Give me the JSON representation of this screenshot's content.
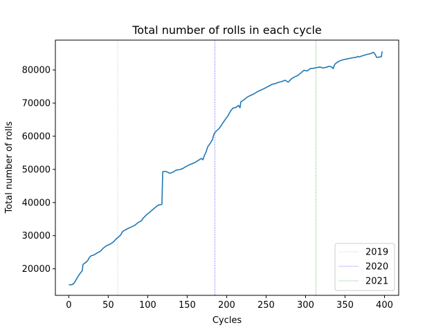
{
  "chart_data": {
    "type": "line",
    "title": "Total number of rolls in each cycle",
    "xlabel": "Cycles",
    "ylabel": "Total number of rolls",
    "xlim": [
      -17,
      418
    ],
    "ylim": [
      12000,
      89000
    ],
    "xticks": [
      0,
      50,
      100,
      150,
      200,
      250,
      300,
      350,
      400
    ],
    "yticks": [
      20000,
      30000,
      40000,
      50000,
      60000,
      70000,
      80000
    ],
    "grid": false,
    "legend_position": "lower-right",
    "series": [
      {
        "color": "#1f77b4",
        "points": [
          [
            0,
            15200
          ],
          [
            3,
            15200
          ],
          [
            5,
            15300
          ],
          [
            7,
            15800
          ],
          [
            9,
            16600
          ],
          [
            11,
            17400
          ],
          [
            13,
            18200
          ],
          [
            15,
            18800
          ],
          [
            17,
            19400
          ],
          [
            18,
            21300
          ],
          [
            20,
            21700
          ],
          [
            22,
            22000
          ],
          [
            24,
            22500
          ],
          [
            26,
            23400
          ],
          [
            28,
            23900
          ],
          [
            32,
            24200
          ],
          [
            36,
            24800
          ],
          [
            40,
            25300
          ],
          [
            44,
            26300
          ],
          [
            48,
            27000
          ],
          [
            52,
            27400
          ],
          [
            56,
            28000
          ],
          [
            60,
            29000
          ],
          [
            63,
            29600
          ],
          [
            66,
            30300
          ],
          [
            68,
            31200
          ],
          [
            72,
            31800
          ],
          [
            76,
            32300
          ],
          [
            80,
            32700
          ],
          [
            84,
            33200
          ],
          [
            88,
            34000
          ],
          [
            92,
            34500
          ],
          [
            94,
            35200
          ],
          [
            98,
            36200
          ],
          [
            102,
            37000
          ],
          [
            106,
            37800
          ],
          [
            110,
            38600
          ],
          [
            114,
            39300
          ],
          [
            116,
            39300
          ],
          [
            118,
            39500
          ],
          [
            119,
            49300
          ],
          [
            122,
            49400
          ],
          [
            125,
            49200
          ],
          [
            128,
            48800
          ],
          [
            130,
            49000
          ],
          [
            133,
            49300
          ],
          [
            136,
            49800
          ],
          [
            140,
            49900
          ],
          [
            144,
            50200
          ],
          [
            148,
            50800
          ],
          [
            152,
            51300
          ],
          [
            156,
            51700
          ],
          [
            160,
            52100
          ],
          [
            164,
            52700
          ],
          [
            168,
            53300
          ],
          [
            170,
            52900
          ],
          [
            172,
            54300
          ],
          [
            174,
            55300
          ],
          [
            176,
            56800
          ],
          [
            179,
            57800
          ],
          [
            182,
            59000
          ],
          [
            184,
            60700
          ],
          [
            187,
            61600
          ],
          [
            190,
            62200
          ],
          [
            193,
            63200
          ],
          [
            196,
            64300
          ],
          [
            199,
            65300
          ],
          [
            202,
            66300
          ],
          [
            205,
            67600
          ],
          [
            208,
            68500
          ],
          [
            212,
            68700
          ],
          [
            215,
            69300
          ],
          [
            217,
            68600
          ],
          [
            218,
            70400
          ],
          [
            222,
            71000
          ],
          [
            226,
            71800
          ],
          [
            230,
            72300
          ],
          [
            234,
            72700
          ],
          [
            238,
            73300
          ],
          [
            242,
            73800
          ],
          [
            246,
            74200
          ],
          [
            250,
            74700
          ],
          [
            254,
            75200
          ],
          [
            258,
            75700
          ],
          [
            262,
            75900
          ],
          [
            266,
            76300
          ],
          [
            270,
            76500
          ],
          [
            274,
            76900
          ],
          [
            278,
            76300
          ],
          [
            282,
            77300
          ],
          [
            286,
            77900
          ],
          [
            290,
            78300
          ],
          [
            294,
            79100
          ],
          [
            298,
            79900
          ],
          [
            302,
            79700
          ],
          [
            306,
            80400
          ],
          [
            310,
            80500
          ],
          [
            314,
            80700
          ],
          [
            318,
            80900
          ],
          [
            322,
            80600
          ],
          [
            326,
            80800
          ],
          [
            330,
            81100
          ],
          [
            333,
            80900
          ],
          [
            335,
            80400
          ],
          [
            337,
            81700
          ],
          [
            340,
            82300
          ],
          [
            344,
            82800
          ],
          [
            348,
            83100
          ],
          [
            352,
            83300
          ],
          [
            356,
            83500
          ],
          [
            360,
            83700
          ],
          [
            364,
            83800
          ],
          [
            366,
            84100
          ],
          [
            368,
            83900
          ],
          [
            371,
            84200
          ],
          [
            374,
            84400
          ],
          [
            378,
            84700
          ],
          [
            382,
            84900
          ],
          [
            386,
            85300
          ],
          [
            388,
            84800
          ],
          [
            390,
            83800
          ],
          [
            394,
            83900
          ],
          [
            396,
            84000
          ],
          [
            397,
            85600
          ]
        ]
      }
    ],
    "vlines": [
      {
        "name": "2019",
        "x": 62,
        "color": "#9acd9a"
      },
      {
        "name": "2020",
        "x": 185,
        "color": "#3333ff"
      },
      {
        "name": "2021",
        "x": 313,
        "color": "#2ca02c"
      }
    ]
  }
}
